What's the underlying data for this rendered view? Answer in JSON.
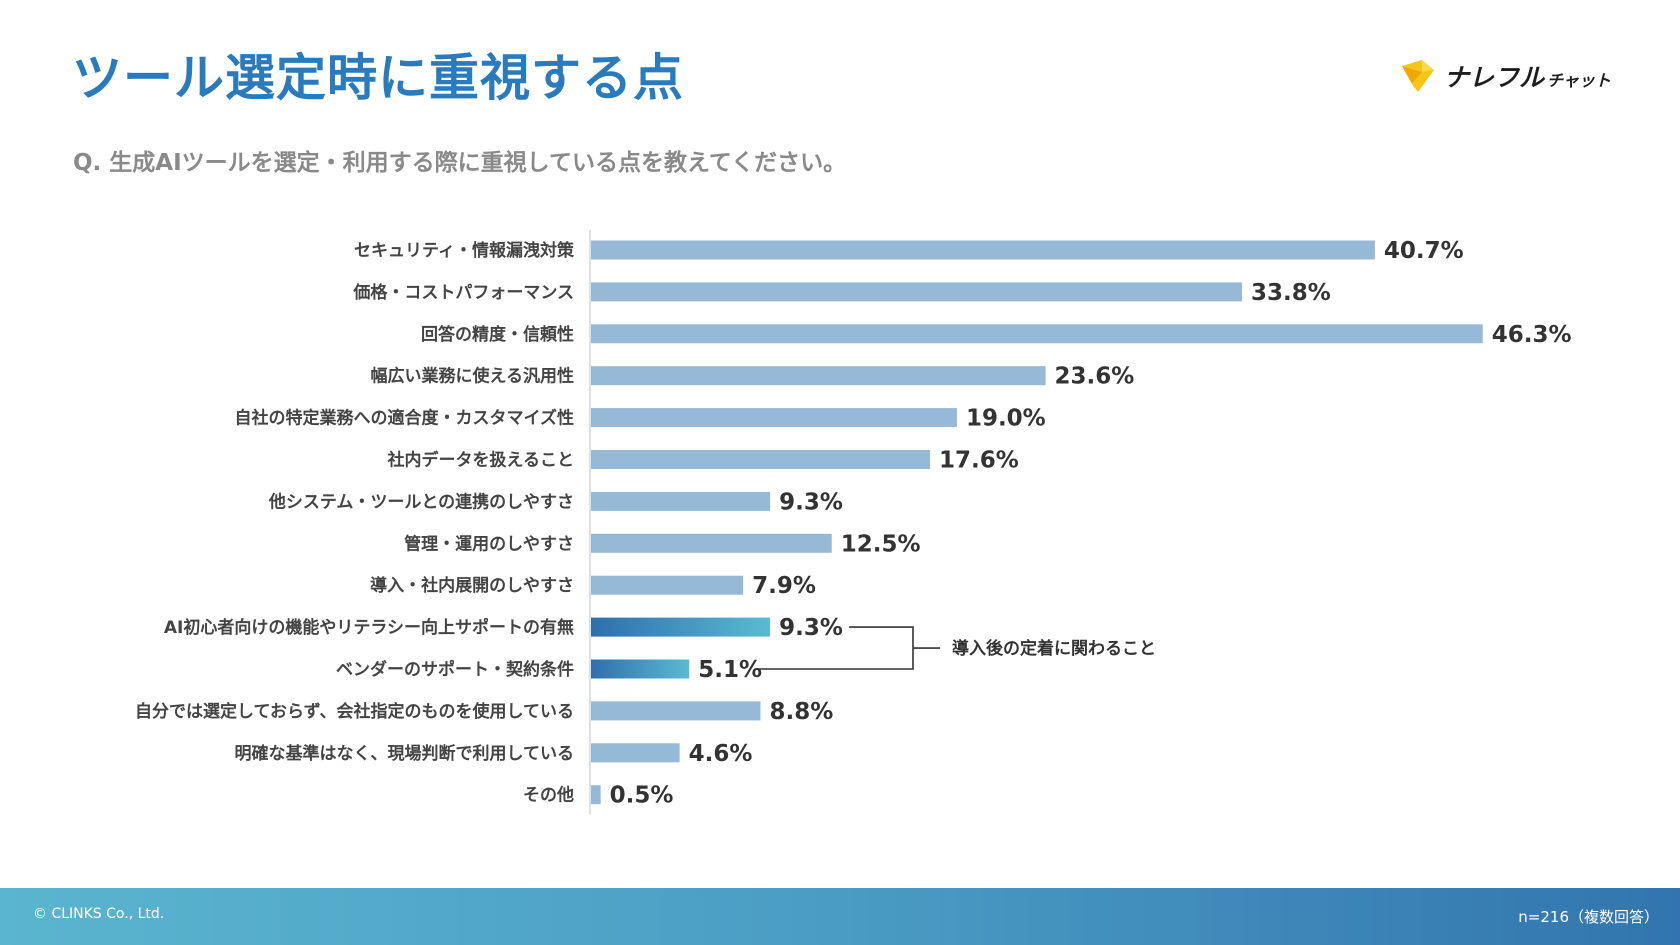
{
  "title": "ツール選定時に重視する点",
  "question": "Q. 生成AIツールを選定・利用する際に重視している点を教えてください。",
  "logo": {
    "name": "ナレフル",
    "sub": "チャット",
    "icon": "yellow-chevron-logo-icon"
  },
  "colors": {
    "title": "#2a7bbd",
    "bar": "#95b9d6",
    "gradient_start": "#2e6fae",
    "gradient_end": "#5bbad2",
    "footer_start": "#5ab5cf",
    "footer_end": "#3275ae"
  },
  "chart_data": {
    "type": "bar",
    "orientation": "horizontal",
    "unit": "%",
    "categories": [
      "セキュリティ・情報漏洩対策",
      "価格・コストパフォーマンス",
      "回答の精度・信頼性",
      "幅広い業務に使える汎用性",
      "自社の特定業務への適合度・カスタマイズ性",
      "社内データを扱えること",
      "他システム・ツールとの連携のしやすさ",
      "管理・運用のしやすさ",
      "導入・社内展開のしやすさ",
      "AI初心者向けの機能やリテラシー向上サポートの有無",
      "ベンダーのサポート・契約条件",
      "自分では選定しておらず、会社指定のものを使用している",
      "明確な基準はなく、現場判断で利用している",
      "その他"
    ],
    "values": [
      40.7,
      33.8,
      46.3,
      23.6,
      19.0,
      17.6,
      9.3,
      12.5,
      7.9,
      9.3,
      5.1,
      8.8,
      4.6,
      0.5
    ],
    "value_labels": [
      "40.7%",
      "33.8%",
      "46.3%",
      "23.6%",
      "19.0%",
      "17.6%",
      "9.3%",
      "12.5%",
      "7.9%",
      "9.3%",
      "5.1%",
      "8.8%",
      "4.6%",
      "0.5%"
    ],
    "highlighted": [
      9,
      10
    ],
    "annotation": {
      "text": "導入後の定着に関わること",
      "targets": [
        9,
        10
      ]
    },
    "grid": false,
    "legend": "none"
  },
  "footer": {
    "copyright": "© CLINKS Co., Ltd.",
    "sample_note": "n=216（複数回答）"
  }
}
